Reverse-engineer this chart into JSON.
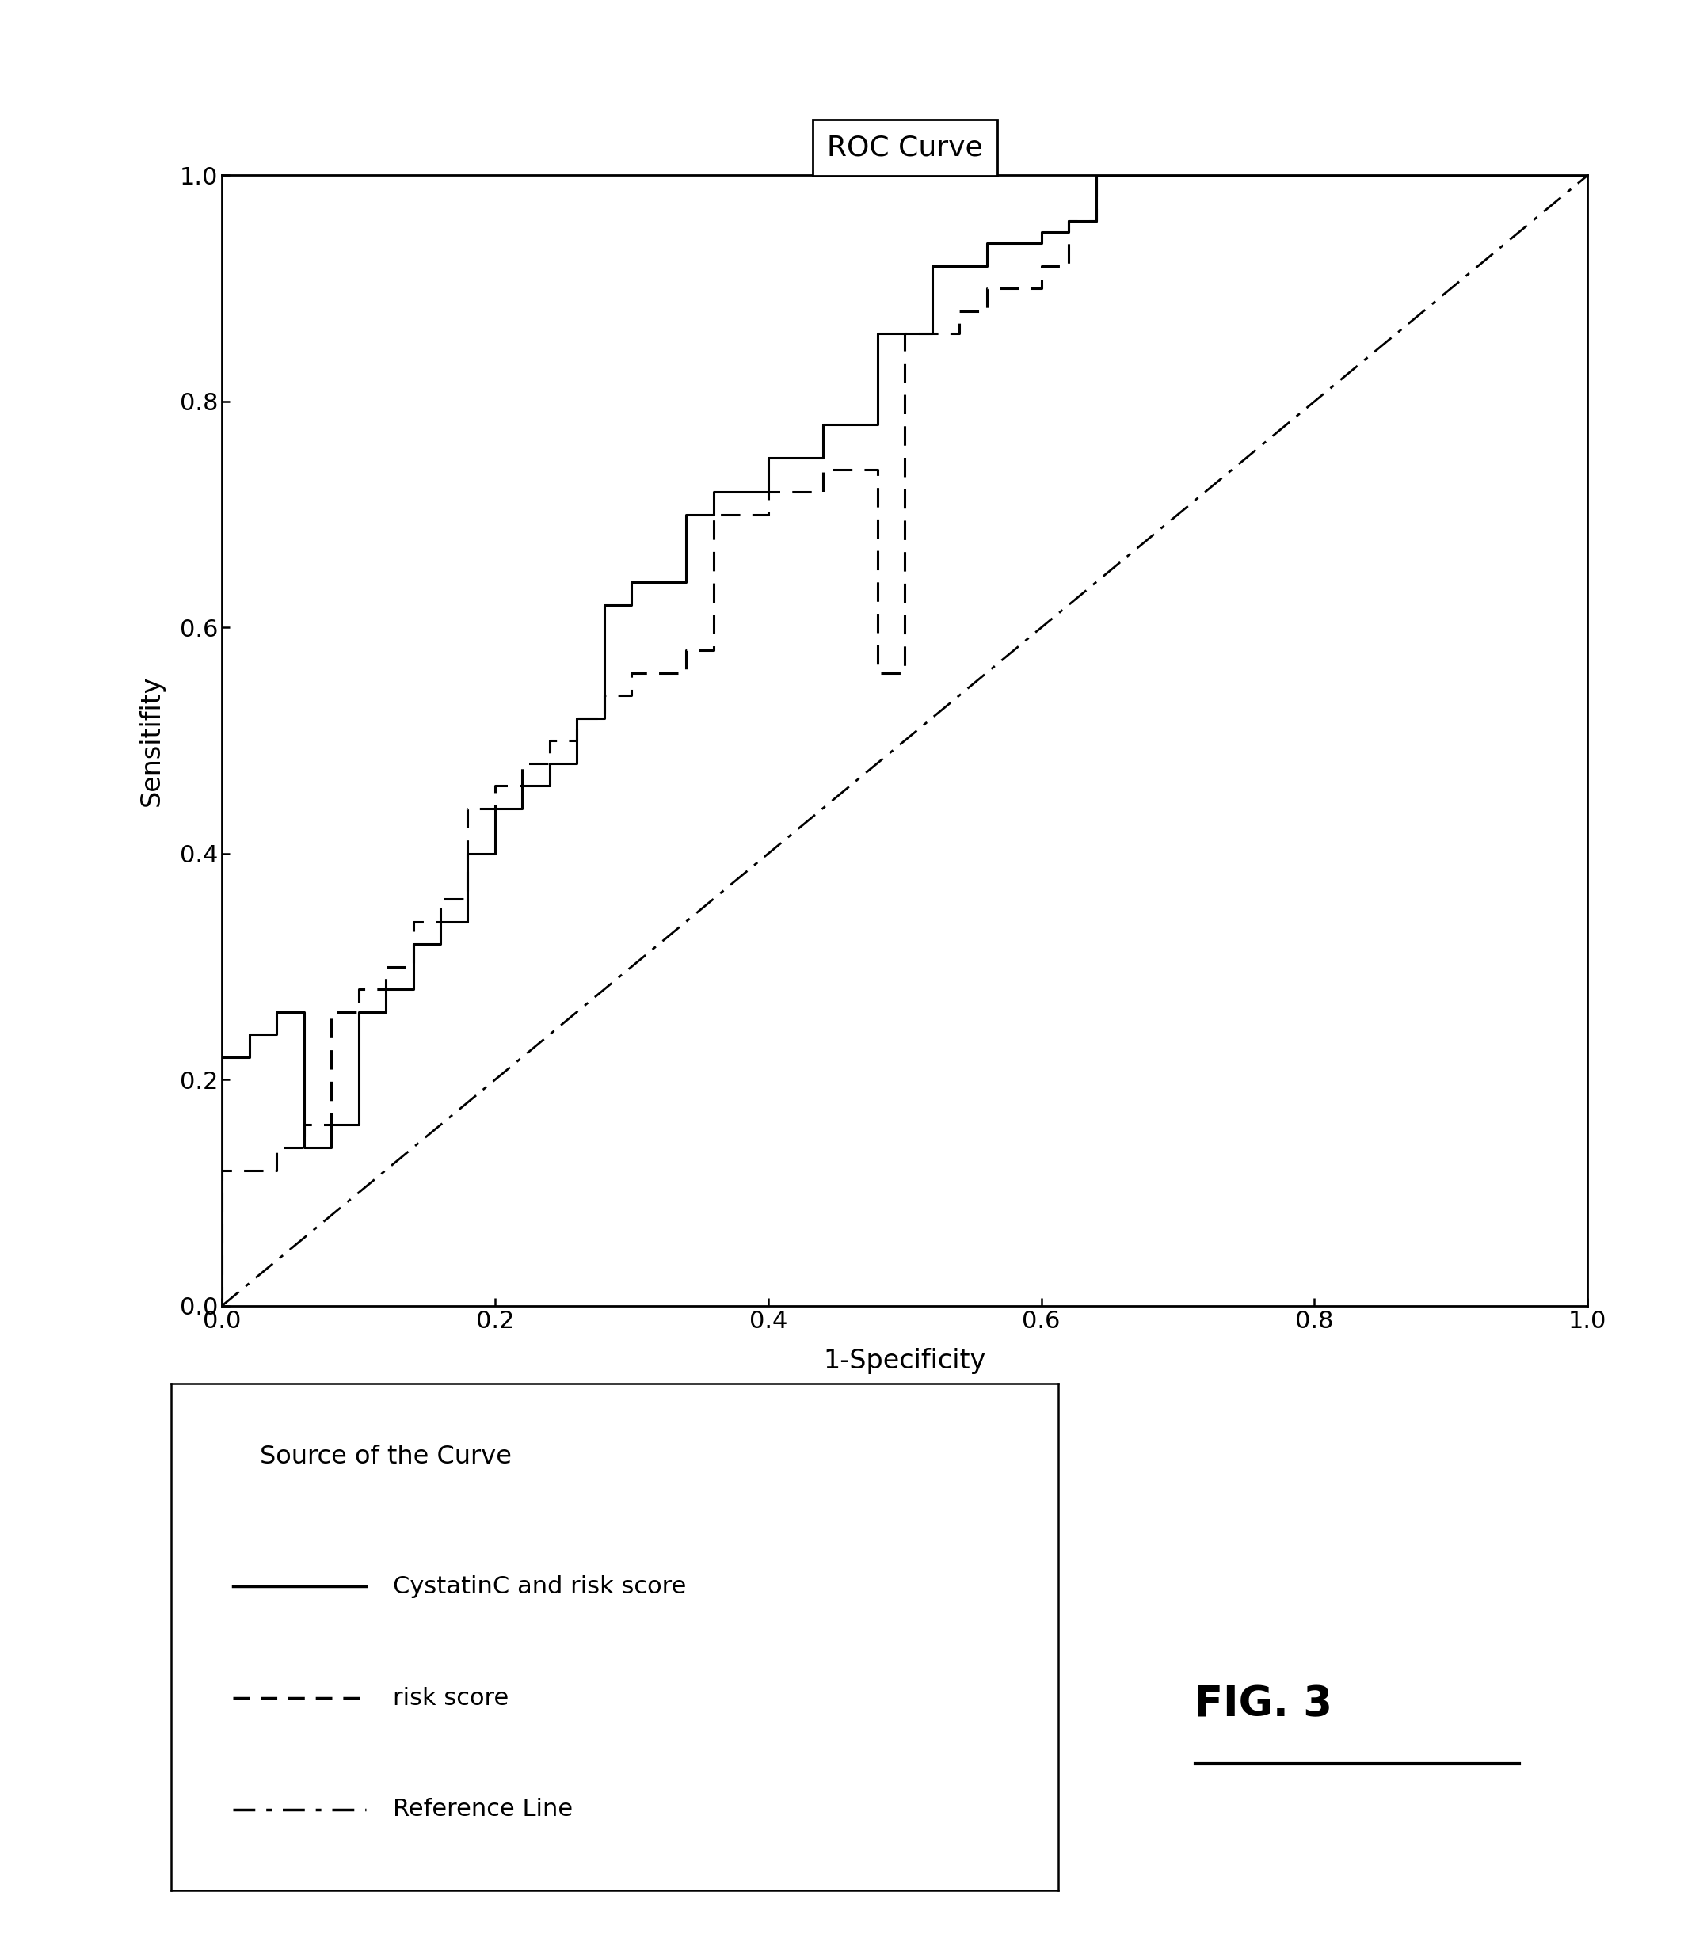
{
  "title": "ROC Curve",
  "xlabel": "1-Specificity",
  "ylabel": "Sensitifity",
  "xlim": [
    0.0,
    1.0
  ],
  "ylim": [
    0.0,
    1.0
  ],
  "xticks": [
    0.0,
    0.2,
    0.4,
    0.6,
    0.8,
    1.0
  ],
  "yticks": [
    0.0,
    0.2,
    0.4,
    0.6,
    0.8,
    1.0
  ],
  "background_color": "#ffffff",
  "cystatinc_x": [
    0.0,
    0.0,
    0.02,
    0.02,
    0.04,
    0.04,
    0.06,
    0.06,
    0.08,
    0.08,
    0.1,
    0.1,
    0.12,
    0.12,
    0.14,
    0.14,
    0.16,
    0.16,
    0.18,
    0.18,
    0.2,
    0.2,
    0.22,
    0.22,
    0.24,
    0.24,
    0.26,
    0.26,
    0.28,
    0.28,
    0.3,
    0.3,
    0.34,
    0.34,
    0.36,
    0.36,
    0.4,
    0.4,
    0.44,
    0.44,
    0.48,
    0.48,
    0.52,
    0.52,
    0.56,
    0.56,
    0.6,
    0.6,
    0.62,
    0.62,
    0.64,
    0.64,
    0.8,
    0.8,
    0.9,
    0.9,
    1.0
  ],
  "cystatinc_y": [
    0.0,
    0.22,
    0.22,
    0.24,
    0.24,
    0.26,
    0.26,
    0.14,
    0.14,
    0.16,
    0.16,
    0.26,
    0.26,
    0.28,
    0.28,
    0.32,
    0.32,
    0.34,
    0.34,
    0.4,
    0.4,
    0.44,
    0.44,
    0.46,
    0.46,
    0.48,
    0.48,
    0.52,
    0.52,
    0.62,
    0.62,
    0.64,
    0.64,
    0.7,
    0.7,
    0.72,
    0.72,
    0.75,
    0.75,
    0.78,
    0.78,
    0.86,
    0.86,
    0.92,
    0.92,
    0.94,
    0.94,
    0.95,
    0.95,
    0.96,
    0.96,
    1.0,
    1.0,
    1.0,
    1.0,
    1.0,
    1.0
  ],
  "riskscore_x": [
    0.0,
    0.0,
    0.04,
    0.04,
    0.06,
    0.06,
    0.08,
    0.08,
    0.1,
    0.1,
    0.12,
    0.12,
    0.14,
    0.14,
    0.16,
    0.16,
    0.18,
    0.18,
    0.2,
    0.2,
    0.22,
    0.22,
    0.24,
    0.24,
    0.26,
    0.26,
    0.28,
    0.28,
    0.3,
    0.3,
    0.34,
    0.34,
    0.36,
    0.36,
    0.4,
    0.4,
    0.44,
    0.44,
    0.48,
    0.48,
    0.5,
    0.5,
    0.54,
    0.54,
    0.56,
    0.56,
    0.6,
    0.6,
    0.62,
    0.62,
    0.64,
    0.64,
    0.8,
    0.8,
    0.9,
    0.9,
    1.0
  ],
  "riskscore_y": [
    0.0,
    0.12,
    0.12,
    0.14,
    0.14,
    0.16,
    0.16,
    0.26,
    0.26,
    0.28,
    0.28,
    0.3,
    0.3,
    0.34,
    0.34,
    0.36,
    0.36,
    0.44,
    0.44,
    0.46,
    0.46,
    0.48,
    0.48,
    0.5,
    0.5,
    0.52,
    0.52,
    0.54,
    0.54,
    0.56,
    0.56,
    0.58,
    0.58,
    0.7,
    0.7,
    0.72,
    0.72,
    0.74,
    0.74,
    0.56,
    0.56,
    0.86,
    0.86,
    0.88,
    0.88,
    0.9,
    0.9,
    0.92,
    0.92,
    0.96,
    0.96,
    1.0,
    1.0,
    1.0,
    1.0,
    1.0,
    1.0
  ],
  "legend_title": "Source of the Curve",
  "legend_labels": [
    "CystatinC and risk score",
    "risk score",
    "Reference Line"
  ],
  "fig_label": "FIG. 3",
  "title_fontsize": 26,
  "label_fontsize": 24,
  "tick_fontsize": 22,
  "legend_title_fontsize": 23,
  "legend_fontsize": 22
}
